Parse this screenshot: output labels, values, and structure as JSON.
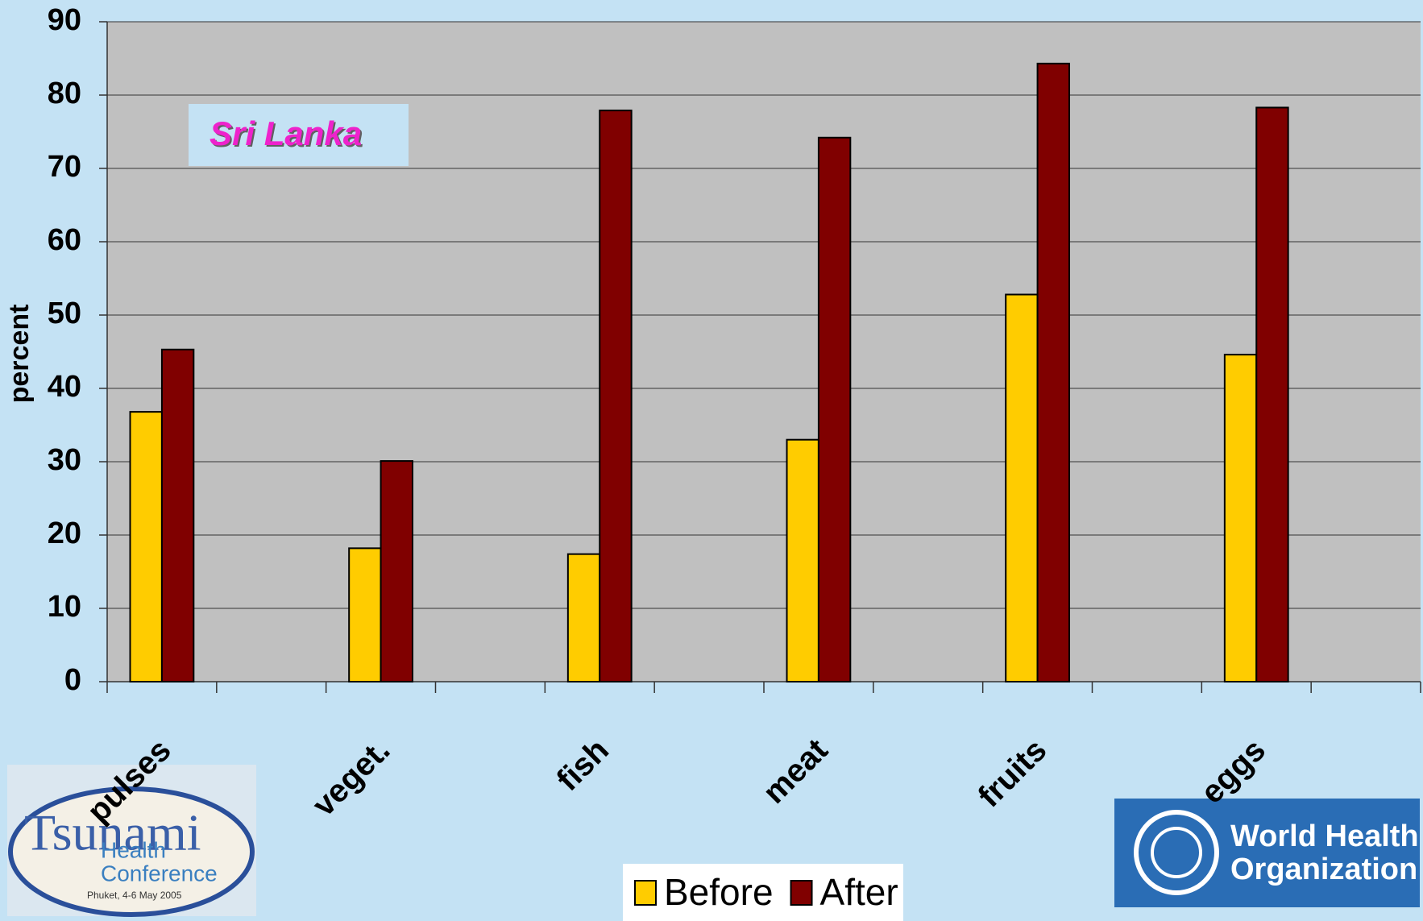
{
  "chart_data": {
    "type": "bar",
    "annotation": "Sri Lanka",
    "y_label": "percent",
    "categories": [
      "pulses",
      null,
      "veget.",
      null,
      "fish",
      null,
      "meat",
      null,
      "fruits",
      null,
      "eggs",
      null
    ],
    "series": [
      {
        "name": "Before",
        "color": "#ffcc00",
        "values": [
          36.8,
          null,
          18.2,
          null,
          17.4,
          null,
          33,
          null,
          52.8,
          null,
          44.6,
          null
        ]
      },
      {
        "name": "After",
        "color": "#800000",
        "values": [
          45.3,
          null,
          30.1,
          null,
          77.9,
          null,
          74.2,
          null,
          84.3,
          null,
          78.3,
          null
        ]
      }
    ],
    "ylim": [
      0,
      90
    ],
    "yticks": [
      0,
      10,
      20,
      30,
      40,
      50,
      60,
      70,
      80,
      90
    ],
    "grid": true,
    "legend": "bottom"
  },
  "logos": {
    "left": {
      "title": "Tsunami",
      "line2": "Health",
      "line3": "Conference",
      "caption": "Phuket, 4-6 May 2005"
    },
    "right": {
      "line1": "World Health",
      "line2": "Organization"
    }
  }
}
